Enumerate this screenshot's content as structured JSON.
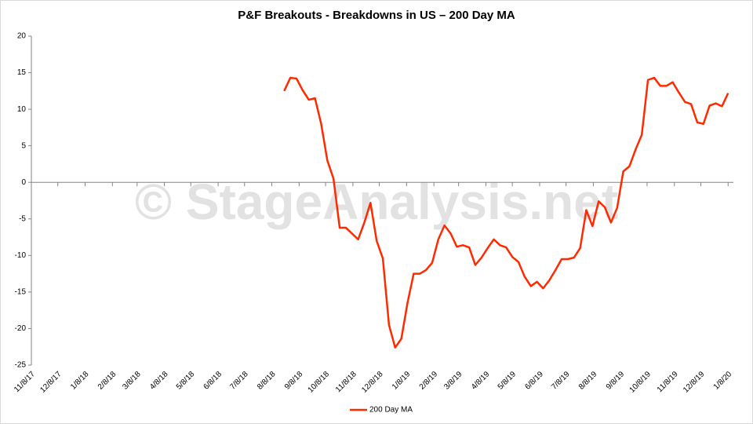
{
  "chart_data": {
    "type": "line",
    "title": "P&F Breakouts - Breakdowns in US – 200 Day MA",
    "watermark": "© StageAnalysis.net",
    "x": [
      "2018-08-22",
      "2018-08-29",
      "2018-09-05",
      "2018-09-12",
      "2018-09-19",
      "2018-09-26",
      "2018-10-03",
      "2018-10-10",
      "2018-10-17",
      "2018-10-24",
      "2018-10-31",
      "2018-11-07",
      "2018-11-14",
      "2018-11-21",
      "2018-11-28",
      "2018-12-05",
      "2018-12-12",
      "2018-12-19",
      "2018-12-26",
      "2019-01-02",
      "2019-01-09",
      "2019-01-16",
      "2019-01-23",
      "2019-01-30",
      "2019-02-06",
      "2019-02-13",
      "2019-02-20",
      "2019-02-27",
      "2019-03-06",
      "2019-03-13",
      "2019-03-20",
      "2019-03-27",
      "2019-04-03",
      "2019-04-10",
      "2019-04-17",
      "2019-04-24",
      "2019-05-01",
      "2019-05-08",
      "2019-05-15",
      "2019-05-22",
      "2019-05-29",
      "2019-06-05",
      "2019-06-12",
      "2019-06-19",
      "2019-06-26",
      "2019-07-03",
      "2019-07-10",
      "2019-07-17",
      "2019-07-24",
      "2019-07-31",
      "2019-08-07",
      "2019-08-14",
      "2019-08-21",
      "2019-08-28",
      "2019-09-04",
      "2019-09-11",
      "2019-09-18",
      "2019-09-25",
      "2019-10-02",
      "2019-10-09",
      "2019-10-16",
      "2019-10-23",
      "2019-10-30",
      "2019-11-06",
      "2019-11-13",
      "2019-11-20",
      "2019-11-27",
      "2019-12-04",
      "2019-12-11",
      "2019-12-18",
      "2019-12-25",
      "2020-01-01",
      "2020-01-08"
    ],
    "series": [
      {
        "name": "200 Day MA",
        "color": "#ff2a00",
        "values": [
          12.5,
          14.3,
          14.2,
          12.6,
          11.3,
          11.5,
          8.0,
          3.0,
          0.5,
          -6.2,
          -6.2,
          -7.0,
          -7.8,
          -5.5,
          -2.8,
          -8.0,
          -10.4,
          -19.5,
          -22.6,
          -21.4,
          -16.5,
          -12.5,
          -12.5,
          -12,
          -11,
          -7.8,
          -5.9,
          -7,
          -8.8,
          -8.6,
          -8.9,
          -11.3,
          -10.3,
          -9,
          -7.8,
          -8.6,
          -8.9,
          -10.2,
          -10.9,
          -12.9,
          -14.2,
          -13.6,
          -14.5,
          -13.4,
          -12,
          -10.5,
          -10.5,
          -10.3,
          -9,
          -3.8,
          -6,
          -2.6,
          -3.4,
          -5.5,
          -3.5,
          1.5,
          2.2,
          4.5,
          6.5,
          14,
          14.3,
          13.2,
          13.2,
          13.7,
          12.3,
          11,
          10.7,
          8.2,
          8,
          10.5,
          10.8,
          10.4,
          12.2
        ]
      }
    ],
    "xlim": [
      "2017-11-08",
      "2020-01-14"
    ],
    "xticks": [
      {
        "value": "2017-11-08",
        "label": "11/8/17"
      },
      {
        "value": "2017-12-08",
        "label": "12/8/17"
      },
      {
        "value": "2018-01-08",
        "label": "1/8/18"
      },
      {
        "value": "2018-02-08",
        "label": "2/8/18"
      },
      {
        "value": "2018-03-08",
        "label": "3/8/18"
      },
      {
        "value": "2018-04-08",
        "label": "4/8/18"
      },
      {
        "value": "2018-05-08",
        "label": "5/8/18"
      },
      {
        "value": "2018-06-08",
        "label": "6/8/18"
      },
      {
        "value": "2018-07-08",
        "label": "7/8/18"
      },
      {
        "value": "2018-08-08",
        "label": "8/8/18"
      },
      {
        "value": "2018-09-08",
        "label": "9/8/18"
      },
      {
        "value": "2018-10-08",
        "label": "10/8/18"
      },
      {
        "value": "2018-11-08",
        "label": "11/8/18"
      },
      {
        "value": "2018-12-08",
        "label": "12/8/18"
      },
      {
        "value": "2019-01-08",
        "label": "1/8/19"
      },
      {
        "value": "2019-02-08",
        "label": "2/8/19"
      },
      {
        "value": "2019-03-08",
        "label": "3/8/19"
      },
      {
        "value": "2019-04-08",
        "label": "4/8/19"
      },
      {
        "value": "2019-05-08",
        "label": "5/8/19"
      },
      {
        "value": "2019-06-08",
        "label": "6/8/19"
      },
      {
        "value": "2019-07-08",
        "label": "7/8/19"
      },
      {
        "value": "2019-08-08",
        "label": "8/8/19"
      },
      {
        "value": "2019-09-08",
        "label": "9/8/19"
      },
      {
        "value": "2019-10-08",
        "label": "10/8/19"
      },
      {
        "value": "2019-11-08",
        "label": "11/8/19"
      },
      {
        "value": "2019-12-08",
        "label": "12/8/19"
      },
      {
        "value": "2020-01-08",
        "label": "1/8/20"
      }
    ],
    "ylim": [
      -25,
      20
    ],
    "yticks": [
      -25,
      -20,
      -15,
      -10,
      -5,
      0,
      5,
      10,
      15,
      20
    ],
    "grid": false,
    "legend": "bottom"
  }
}
